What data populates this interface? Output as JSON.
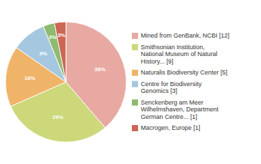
{
  "chart_data": {
    "type": "pie",
    "categories": [
      "Mined from GenBank, NCBI [12]",
      "Smithsonian Institution,\nNational Museum of Natural\nHistory... [9]",
      "Naturalis Biodiversity Center [5]",
      "Centre for Biodiversity\nGenomics [3]",
      "Senckenberg am Meer\nWilhelmshaven, Department\nGerman Centre... [1]",
      "Macrogen, Europe [1]"
    ],
    "values": [
      38,
      29,
      16,
      9,
      3,
      3
    ],
    "value_labels": [
      "38%",
      "29%",
      "16%",
      "9%",
      "3%",
      "3%"
    ],
    "colors": [
      "#e8a9a3",
      "#cdd87a",
      "#f0b469",
      "#a5c8e0",
      "#8fbb6e",
      "#cc6655"
    ],
    "data_labels": true,
    "legend": "right"
  }
}
